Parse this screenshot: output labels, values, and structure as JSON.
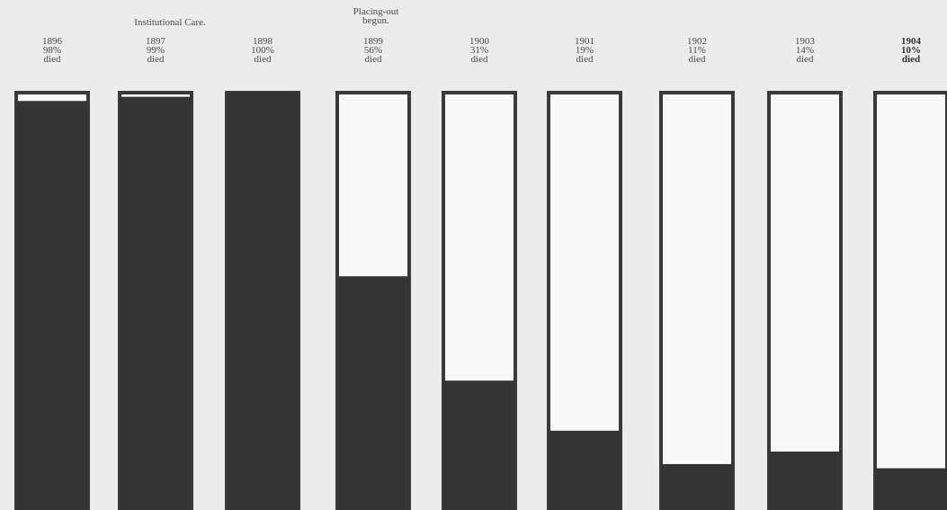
{
  "chart_data": {
    "type": "bar",
    "title": "",
    "xlabel": "",
    "ylabel": "",
    "ylim": [
      0,
      100
    ],
    "categories": [
      "1896",
      "1897",
      "1898",
      "1899",
      "1900",
      "1901",
      "1902",
      "1903",
      "1904"
    ],
    "values": [
      98,
      99,
      100,
      56,
      31,
      19,
      11,
      14,
      10
    ],
    "value_labels": [
      "98%",
      "99%",
      "100%",
      "56%",
      "31%",
      "19%",
      "11%",
      "14%",
      "10%"
    ],
    "value_suffix": "died",
    "annotations": [
      {
        "text": "Institutional Care.",
        "over": "1897"
      },
      {
        "text": "Placing-out begun.",
        "over": "1899"
      }
    ],
    "colors": {
      "filled": "#343434",
      "empty": "#f8f8f8",
      "outline": "#3a3a3a",
      "background": "#ececec"
    }
  }
}
